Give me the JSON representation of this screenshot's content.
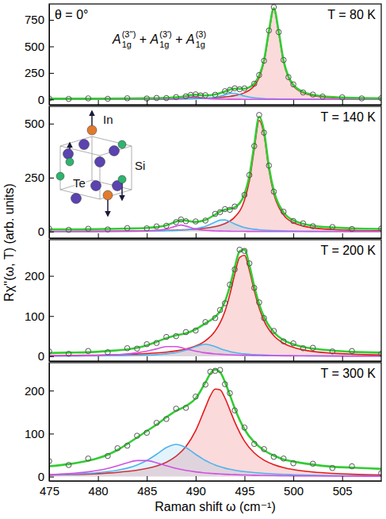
{
  "figure": {
    "ylabel": "Rχ''(ω, T) (arb. units)"
  },
  "chart_data": [
    {
      "type": "line",
      "title": "T = 80 K",
      "annotation": "θ = 0°",
      "mode_label": {
        "terms": [
          {
            "base": "A",
            "sub": "1g",
            "sup": "(3'')"
          },
          {
            "base": "A",
            "sub": "1g",
            "sup": "(3')"
          },
          {
            "base": "A",
            "sub": "1g",
            "sup": "(3)"
          }
        ],
        "joiner": " + "
      },
      "tick_labels": "y",
      "xlim": [
        475,
        509
      ],
      "xticks": [
        475,
        480,
        485,
        490,
        495,
        500,
        505
      ],
      "ylim": [
        -50,
        900
      ],
      "yticks": [
        0,
        250,
        500,
        750
      ],
      "x": [
        475,
        477,
        479,
        481,
        483,
        485,
        486,
        487,
        488,
        489,
        489.5,
        490,
        490.5,
        491,
        492,
        493,
        493.5,
        494,
        494.5,
        495,
        496,
        496.5,
        497,
        497.5,
        498,
        498.5,
        499,
        499.5,
        500,
        501,
        502,
        503,
        505,
        507,
        509
      ],
      "series": [
        {
          "type": "area",
          "color": "#e41a1c",
          "values": [
            1,
            1,
            2,
            2,
            3,
            4,
            4,
            5,
            6,
            8,
            8,
            10,
            11,
            12,
            17,
            24,
            29,
            37,
            47,
            63,
            130,
            207,
            357,
            632,
            850,
            632,
            357,
            207,
            130,
            63,
            37,
            24,
            12,
            8,
            5
          ]
        },
        {
          "type": "area",
          "color": "#4fb3ee",
          "values": [
            0.3,
            0.4,
            0.5,
            0.6,
            0.9,
            1.3,
            1.6,
            2.1,
            2.9,
            4.1,
            5.0,
            6.3,
            8.1,
            10.6,
            20.5,
            43.5,
            57,
            58.6,
            46.5,
            32.4,
            15.5,
            11.3,
            8.5,
            6.6,
            5.3,
            4.3,
            3.5,
            3.0,
            2.5,
            1.9,
            1.5,
            1.2,
            0.8,
            0.6,
            0.4
          ]
        },
        {
          "type": "line",
          "color": "#d34fe0",
          "values": [
            0.1,
            0.2,
            0.2,
            0.3,
            0.5,
            1.0,
            1.6,
            2.8,
            5.9,
            15.2,
            22.9,
            24.0,
            16.8,
            10.2,
            4.3,
            2.2,
            1.7,
            1.3,
            1.1,
            0.9,
            0.6,
            0.5,
            0.5,
            0.4,
            0.4,
            0.3,
            0.3,
            0.3,
            0.2,
            0.2,
            0.2,
            0.1,
            0.1,
            0.1,
            0.1
          ]
        },
        {
          "type": "line",
          "color": "#33cc33",
          "values": [
            7,
            7,
            7,
            8,
            9,
            11,
            12,
            15,
            20,
            32,
            41,
            45,
            41,
            38,
            47,
            75,
            93,
            102,
            100,
            101,
            151,
            224,
            371,
            644,
            861,
            642,
            366,
            215,
            138,
            70,
            44,
            30,
            18,
            13,
            11
          ]
        },
        {
          "type": "scatter",
          "marker": "circle",
          "color": "#555555",
          "values": [
            9,
            5,
            10,
            6,
            11,
            9,
            14,
            13,
            22,
            29,
            43,
            48,
            38,
            40,
            44,
            78,
            90,
            105,
            96,
            104,
            148,
            230,
            365,
            650,
            870,
            635,
            372,
            210,
            142,
            66,
            46,
            27,
            20,
            10,
            12
          ]
        }
      ]
    },
    {
      "type": "line",
      "title": "T = 140 K",
      "inset_labels": [
        "In",
        "Si",
        "Te"
      ],
      "tick_labels": "y",
      "xlim": [
        475,
        509
      ],
      "xticks": [
        475,
        480,
        485,
        490,
        495,
        500,
        505
      ],
      "ylim": [
        -30,
        580
      ],
      "yticks": [
        0,
        250,
        500
      ],
      "x": [
        475,
        477,
        479,
        481,
        483,
        485,
        486,
        487,
        488,
        488.5,
        489,
        490,
        491,
        492,
        492.5,
        493,
        493.5,
        494,
        495,
        495.5,
        496,
        496.5,
        497,
        497.5,
        498,
        499,
        500,
        501,
        502,
        504,
        506,
        509
      ],
      "series": [
        {
          "type": "area",
          "color": "#e41a1c",
          "values": [
            1.1,
            1.4,
            1.7,
            2.1,
            2.8,
            3.8,
            4.6,
            5.6,
            7.0,
            7.8,
            8.8,
            11.7,
            16,
            23.4,
            29.2,
            37.3,
            49,
            67,
            146,
            235,
            382,
            515,
            448,
            287,
            176,
            77,
            41.4,
            25.5,
            17.2,
            9.3,
            5.8,
            3.4
          ]
        },
        {
          "type": "area",
          "color": "#4fb3ee",
          "values": [
            0.4,
            0.6,
            0.7,
            1.0,
            1.4,
            2.2,
            2.9,
            3.9,
            5.5,
            6.7,
            8.3,
            13.5,
            24.3,
            44,
            53.1,
            54.1,
            46.2,
            35.2,
            19,
            14.3,
            11,
            8.7,
            7.0,
            5.7,
            4.8,
            3.4,
            2.6,
            2.0,
            1.6,
            1.1,
            0.8,
            0.5
          ]
        },
        {
          "type": "line",
          "color": "#d34fe0",
          "values": [
            0.2,
            0.3,
            0.5,
            0.7,
            1.4,
            3.2,
            5.6,
            11.7,
            25.6,
            30,
            25.6,
            11.7,
            5.6,
            3.2,
            2.5,
            2.0,
            1.6,
            1.4,
            1.0,
            0.9,
            0.7,
            0.7,
            0.6,
            0.5,
            0.5,
            0.4,
            0.3,
            0.3,
            0.2,
            0.2,
            0.1,
            0.1
          ]
        },
        {
          "type": "line",
          "color": "#33cc33",
          "values": [
            10,
            10,
            11,
            12,
            14,
            17,
            21,
            29,
            46,
            53,
            51,
            45,
            54,
            79,
            93,
            101,
            105,
            112,
            174,
            258,
            402,
            532,
            464,
            301,
            189,
            89,
            52,
            36,
            27,
            19,
            15,
            12
          ]
        },
        {
          "type": "scatter",
          "marker": "circle",
          "color": "#555555",
          "values": [
            14,
            8,
            13,
            10,
            16,
            15,
            24,
            27,
            44,
            56,
            48,
            47,
            51,
            82,
            90,
            104,
            101,
            116,
            170,
            262,
            396,
            540,
            458,
            306,
            185,
            92,
            49,
            38,
            25,
            21,
            12,
            14
          ]
        }
      ]
    },
    {
      "type": "line",
      "title": "T = 200 K",
      "tick_labels": "y",
      "xlim": [
        475,
        509
      ],
      "xticks": [
        475,
        480,
        485,
        490,
        495,
        500,
        505
      ],
      "ylim": [
        -12,
        290
      ],
      "yticks": [
        0,
        100,
        200
      ],
      "x": [
        475,
        477,
        479,
        481,
        483,
        484,
        485,
        486,
        487,
        488,
        489,
        490,
        491,
        492,
        492.5,
        493,
        493.5,
        494,
        494.5,
        495,
        495.5,
        496,
        496.5,
        497,
        498,
        499,
        500,
        501,
        502,
        504,
        506,
        509
      ],
      "series": [
        {
          "type": "area",
          "color": "#e41a1c",
          "values": [
            1.7,
            2.0,
            2.6,
            3.4,
            4.6,
            5.5,
            6.6,
            8.1,
            10.3,
            13.4,
            18.1,
            25.5,
            38.4,
            62.8,
            83,
            112,
            153.6,
            204,
            246,
            251,
            214,
            163,
            120,
            88,
            51,
            32.3,
            22.1,
            15.9,
            11.9,
            7.5,
            5.1,
            3.2
          ]
        },
        {
          "type": "area",
          "color": "#4fb3ee",
          "values": [
            0.5,
            0.6,
            0.8,
            1.2,
            1.8,
            2.3,
            3,
            4.1,
            6,
            9.2,
            15,
            24,
            30,
            24,
            19.2,
            15,
            11.7,
            9.2,
            7.4,
            6,
            5,
            4.1,
            3.5,
            3,
            2.3,
            1.8,
            1.4,
            1.2,
            1.0,
            0.7,
            0.5,
            0.4
          ]
        },
        {
          "type": "line",
          "color": "#d34fe0",
          "values": [
            1.0,
            1.3,
            2.0,
            3.2,
            5.9,
            8.4,
            12.5,
            18.4,
            24,
            24,
            18.4,
            12.5,
            8.4,
            5.9,
            5,
            4.3,
            3.7,
            3.2,
            2.8,
            2.5,
            2.2,
            2.0,
            1.8,
            1.6,
            1.3,
            1.1,
            1.0,
            0.8,
            0.7,
            0.6,
            0.4,
            0.3
          ]
        },
        {
          "type": "line",
          "color": "#33cc33",
          "values": [
            8,
            9,
            10,
            13,
            17,
            21,
            27,
            36,
            45,
            52,
            57,
            67,
            82,
            98,
            112,
            136,
            174,
            221,
            261,
            265,
            226,
            174,
            130,
            98,
            60,
            40,
            30,
            23,
            19,
            14,
            11,
            9
          ]
        },
        {
          "type": "scatter",
          "marker": "circle",
          "color": "#555555",
          "values": [
            12,
            6,
            13,
            10,
            20,
            19,
            30,
            33,
            48,
            50,
            60,
            64,
            85,
            95,
            115,
            132,
            178,
            216,
            265,
            262,
            231,
            170,
            134,
            95,
            63,
            37,
            32,
            20,
            21,
            12,
            13,
            6
          ]
        }
      ]
    },
    {
      "type": "line",
      "title": "T = 300 K",
      "xlabel": "Raman shift ω (cm⁻¹)",
      "xlim": [
        475,
        509
      ],
      "xticks": [
        475,
        480,
        485,
        490,
        495,
        500,
        505
      ],
      "ylim": [
        -10,
        265
      ],
      "yticks": [
        0,
        100,
        200
      ],
      "x": [
        475,
        477,
        479,
        481,
        482,
        483,
        484,
        485,
        486,
        487,
        488,
        489,
        490,
        491,
        491.5,
        492,
        492.5,
        493,
        493.5,
        494,
        495,
        496,
        497,
        498,
        499,
        500,
        502,
        504,
        506,
        509
      ],
      "series": [
        {
          "type": "area",
          "color": "#e41a1c",
          "values": [
            3.6,
            4.6,
            6.0,
            8.3,
            9.9,
            12.1,
            15,
            19,
            24.8,
            33.5,
            47.3,
            69.8,
            107,
            161,
            187.6,
            203.5,
            201.6,
            182.9,
            155.3,
            127.2,
            82.6,
            55,
            38.3,
            27.9,
            21,
            16.4,
            10.7,
            7.5,
            5.5,
            3.8
          ]
        },
        {
          "type": "area",
          "color": "#4fb3ee",
          "values": [
            3.8,
            5.2,
            7.5,
            11.6,
            15,
            19.8,
            27,
            37.5,
            51.9,
            67.5,
            75,
            67.5,
            51.9,
            37.5,
            31.8,
            27,
            23.1,
            19.8,
            17.2,
            15,
            11.6,
            9.3,
            7.5,
            6.2,
            5.2,
            4.4,
            3.3,
            2.5,
            2.0,
            1.5
          ]
        },
        {
          "type": "line",
          "color": "#d34fe0",
          "values": [
            4.5,
            6.8,
            11,
            19,
            25.2,
            32.1,
            37.3,
            37.3,
            32.1,
            25.2,
            19,
            14.3,
            11,
            8.5,
            7.6,
            6.8,
            6.1,
            5.5,
            5.0,
            4.5,
            3.8,
            3.2,
            2.8,
            2.4,
            2.1,
            1.8,
            1.5,
            1.2,
            1.0,
            0.8
          ]
        },
        {
          "type": "line",
          "color": "#33cc33",
          "values": [
            24,
            29,
            37,
            51,
            62,
            76,
            91,
            106,
            121,
            138,
            153,
            164,
            182,
            219,
            239,
            249,
            243,
            220,
            190,
            159,
            110,
            80,
            61,
            49,
            40,
            35,
            28,
            23,
            21,
            18
          ]
        },
        {
          "type": "scatter",
          "marker": "circle",
          "color": "#555555",
          "values": [
            36,
            27,
            42,
            48,
            66,
            72,
            95,
            102,
            125,
            134,
            158,
            160,
            186,
            214,
            244,
            246,
            248,
            215,
            194,
            154,
            114,
            76,
            64,
            46,
            42,
            31,
            30,
            20,
            24,
            8
          ]
        }
      ]
    }
  ]
}
